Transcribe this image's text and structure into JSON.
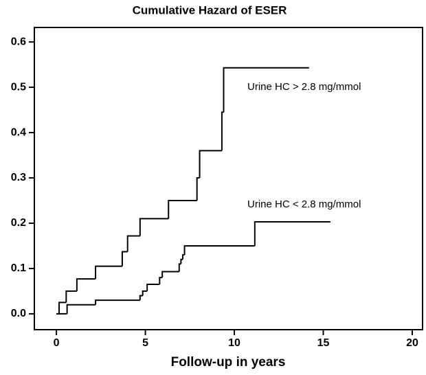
{
  "chart_data": {
    "type": "step",
    "title": "Cumulative Hazard of ESER",
    "x_label": "Follow-up in years",
    "xlim": [
      -1.24,
      20.58
    ],
    "xticks": [
      0,
      5,
      10,
      15,
      20
    ],
    "ylim": [
      -0.035,
      0.632
    ],
    "yticks": [
      {
        "value": 0,
        "label": "0.0"
      },
      0.1,
      0.2,
      0.3,
      0.4,
      0.5,
      0.6
    ],
    "series": [
      {
        "name": "Urine HC > 2.8 mg/mmol",
        "color": "#000000",
        "x": [
          0,
          0.15,
          0.55,
          1.15,
          2.2,
          3.7,
          4.0,
          4.7,
          6.3,
          7.9,
          8.05,
          9.3,
          9.4,
          14.2
        ],
        "values": [
          0,
          0.025,
          0.05,
          0.077,
          0.105,
          0.137,
          0.172,
          0.21,
          0.25,
          0.3,
          0.36,
          0.445,
          0.543,
          0.543
        ]
      },
      {
        "name": "Urine HC < 2.8 mg/mmol",
        "color": "#000000",
        "x": [
          0,
          0.6,
          2.2,
          4.7,
          4.85,
          5.1,
          5.8,
          5.95,
          6.9,
          7.0,
          7.1,
          7.2,
          11.15,
          15.4
        ],
        "values": [
          0,
          0.02,
          0.03,
          0.04,
          0.05,
          0.065,
          0.08,
          0.093,
          0.11,
          0.12,
          0.13,
          0.15,
          0.203,
          0.203
        ]
      }
    ]
  }
}
